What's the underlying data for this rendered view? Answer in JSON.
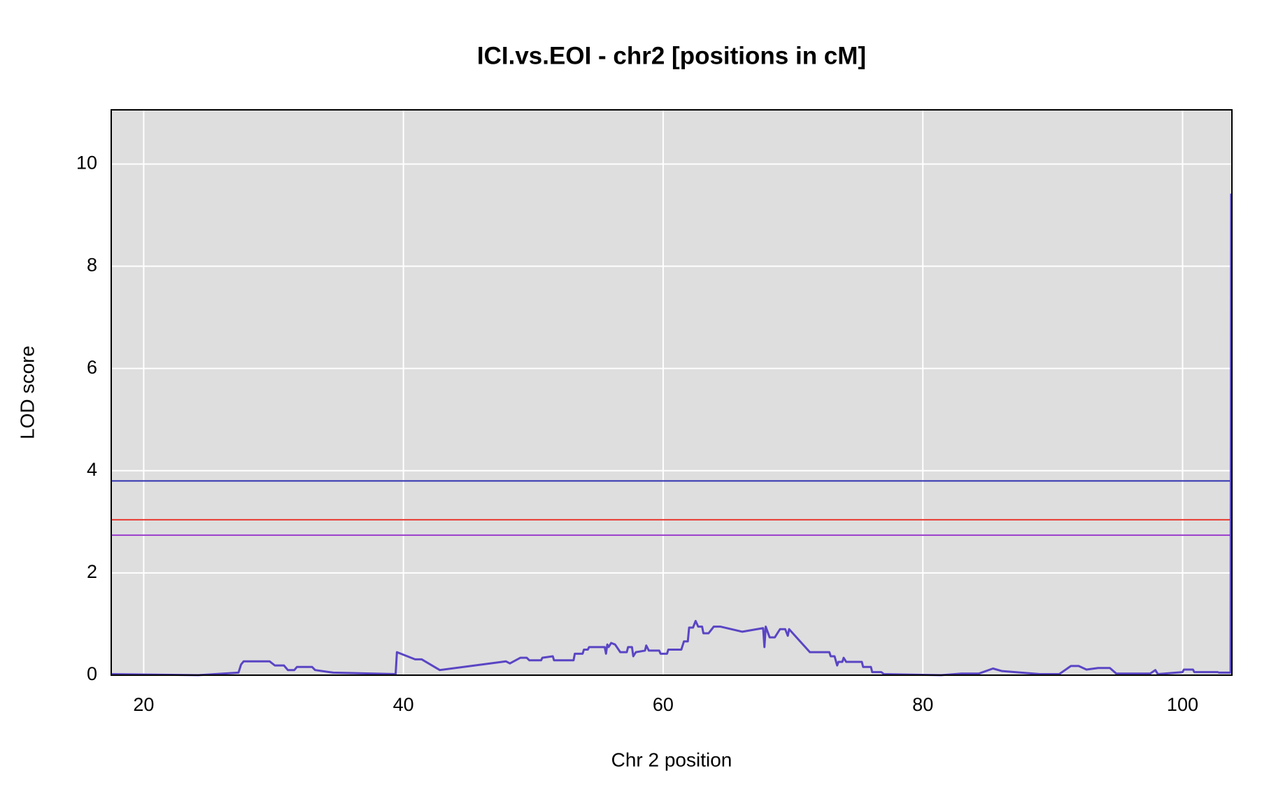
{
  "chart_data": {
    "type": "line",
    "title": "ICI.vs.EOI - chr2 [positions in cM]",
    "xlabel": "Chr 2 position",
    "ylabel": "LOD score",
    "color": "#5a45c4",
    "background": "#dedede",
    "grid": true,
    "xlim": [
      17.5,
      103.8
    ],
    "ylim": [
      0,
      11.06
    ],
    "xticks": [
      20,
      40,
      60,
      80,
      100
    ],
    "yticks": [
      0,
      2,
      4,
      6,
      8,
      10
    ],
    "hlines": [
      {
        "value": 3.8,
        "color": "#3030b0"
      },
      {
        "value": 3.04,
        "color": "#e8382e"
      },
      {
        "value": 2.74,
        "color": "#9a3ccc"
      }
    ],
    "x": [
      17.5,
      24.2,
      27.3,
      27.5,
      27.7,
      29.7,
      30.1,
      30.8,
      31.1,
      31.6,
      31.8,
      32.97,
      33.2,
      34.3,
      34.6,
      39.4,
      39.5,
      40.9,
      41.4,
      42.8,
      47.9,
      48.2,
      49.0,
      49.5,
      49.7,
      50.6,
      50.7,
      51.5,
      51.6,
      53.1,
      53.2,
      53.8,
      53.9,
      54.2,
      54.3,
      55.5,
      55.6,
      55.7,
      55.8,
      56.0,
      56.3,
      56.7,
      57.2,
      57.3,
      57.6,
      57.7,
      57.9,
      58.6,
      58.7,
      58.9,
      59.7,
      59.8,
      60.3,
      60.4,
      61.4,
      61.6,
      61.9,
      62.0,
      62.3,
      62.5,
      62.7,
      63.0,
      63.1,
      63.5,
      63.9,
      64.4,
      66.1,
      67.7,
      67.8,
      67.9,
      68.2,
      68.6,
      69.0,
      69.4,
      69.6,
      69.7,
      71.3,
      72.8,
      72.9,
      73.2,
      73.4,
      73.5,
      73.8,
      73.9,
      74.1,
      75.3,
      75.4,
      76.0,
      76.1,
      76.8,
      77.0,
      81.4,
      82.9,
      84.3,
      85.4,
      86.1,
      89.0,
      90.5,
      91.4,
      92.0,
      92.6,
      93.5,
      94.4,
      94.9,
      97.5,
      97.9,
      98.1,
      100,
      100.1,
      100.8,
      100.9,
      102.7,
      102.8,
      103.7,
      103.74
    ],
    "values": [
      0.02,
      0,
      0.05,
      0.21,
      0.27,
      0.27,
      0.19,
      0.19,
      0.1,
      0.1,
      0.16,
      0.16,
      0.1,
      0.06,
      0.05,
      0.02,
      0.45,
      0.31,
      0.31,
      0.1,
      0.27,
      0.23,
      0.34,
      0.34,
      0.29,
      0.29,
      0.34,
      0.37,
      0.29,
      0.29,
      0.42,
      0.42,
      0.5,
      0.5,
      0.55,
      0.55,
      0.42,
      0.6,
      0.55,
      0.63,
      0.6,
      0.45,
      0.45,
      0.55,
      0.55,
      0.37,
      0.45,
      0.48,
      0.58,
      0.48,
      0.48,
      0.42,
      0.42,
      0.5,
      0.5,
      0.66,
      0.66,
      0.93,
      0.93,
      1.06,
      0.95,
      0.95,
      0.82,
      0.82,
      0.95,
      0.95,
      0.85,
      0.92,
      0.55,
      0.95,
      0.74,
      0.74,
      0.9,
      0.9,
      0.77,
      0.9,
      0.45,
      0.45,
      0.37,
      0.37,
      0.19,
      0.26,
      0.26,
      0.34,
      0.26,
      0.26,
      0.16,
      0.16,
      0.06,
      0.06,
      0.02,
      0,
      0.03,
      0.03,
      0.13,
      0.08,
      0.02,
      0.02,
      0.18,
      0.18,
      0.11,
      0.14,
      0.14,
      0.03,
      0.03,
      0.1,
      0.02,
      0.06,
      0.11,
      0.11,
      0.06,
      0.06,
      0.05,
      0.05,
      9.42
    ]
  }
}
